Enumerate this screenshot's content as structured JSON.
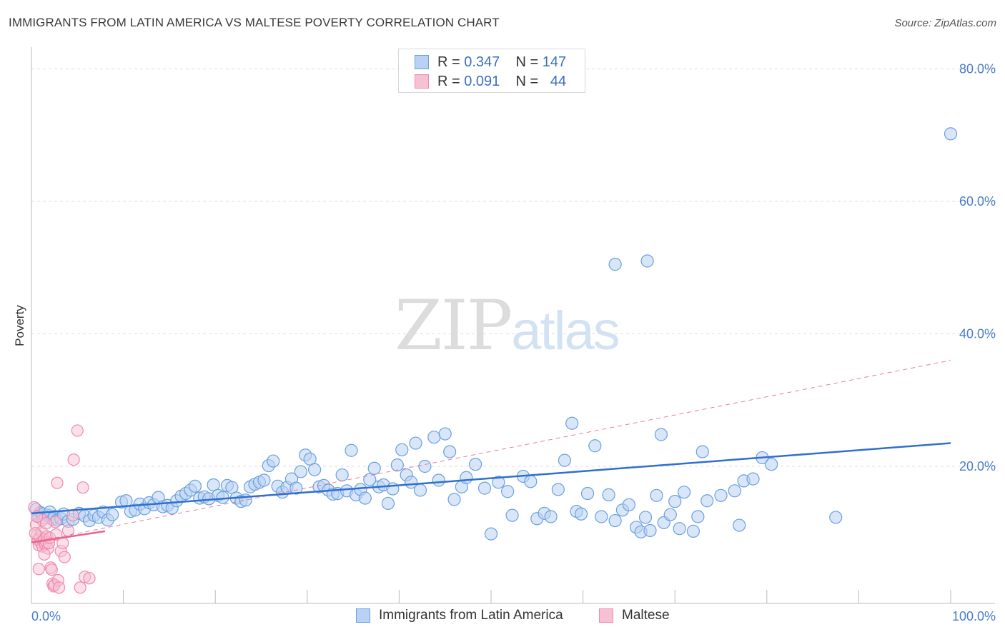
{
  "title": "IMMIGRANTS FROM LATIN AMERICA VS MALTESE POVERTY CORRELATION CHART",
  "source": "Source: ZipAtlas.com",
  "watermark": {
    "part1": "ZIP",
    "part2": "atlas"
  },
  "legend": {
    "rows": [
      {
        "r_label": "R =",
        "r_value": "0.347",
        "n_label": "N =",
        "n_value": "147"
      },
      {
        "r_label": "R =",
        "r_value": "0.091",
        "n_label": "N =",
        "n_value": "44"
      }
    ]
  },
  "colors": {
    "blue": "#6aa0e0",
    "blue_fill": "#b9d1f3",
    "blue_line": "#2f6fcf",
    "pink": "#ef8aab",
    "pink_fill": "#f6c2d3",
    "pink_line": "#e8648f",
    "grid": "#dddddd",
    "tick_label": "#4a7cc9"
  },
  "chart_data": {
    "type": "scatter",
    "title": "IMMIGRANTS FROM LATIN AMERICA VS MALTESE POVERTY CORRELATION CHART",
    "xlabel": "",
    "ylabel": "Poverty",
    "xlim": [
      0,
      100
    ],
    "ylim": [
      0,
      80
    ],
    "x_tick_labels": [
      "0.0%",
      "100.0%"
    ],
    "y_ticks": [
      20,
      40,
      60,
      80
    ],
    "y_tick_labels": [
      "20.0%",
      "40.0%",
      "60.0%",
      "80.0%"
    ],
    "grid": "horizontal dashed",
    "legend_position": "top-center",
    "series": [
      {
        "name": "Immigrants from Latin America",
        "r": 0.347,
        "n": 147,
        "trend": [
          [
            0,
            12.9
          ],
          [
            100,
            23.5
          ]
        ],
        "points": [
          [
            0.5,
            13.5
          ],
          [
            0.8,
            12.5
          ],
          [
            1.0,
            13.0
          ],
          [
            1.2,
            12.8
          ],
          [
            1.5,
            12.2
          ],
          [
            1.8,
            12.6
          ],
          [
            2.0,
            13.1
          ],
          [
            2.3,
            12.0
          ],
          [
            2.5,
            12.4
          ],
          [
            2.8,
            11.9
          ],
          [
            3.2,
            12.1
          ],
          [
            3.5,
            12.8
          ],
          [
            4.0,
            11.7
          ],
          [
            4.5,
            12.0
          ],
          [
            5.2,
            12.9
          ],
          [
            5.8,
            12.5
          ],
          [
            6.3,
            11.8
          ],
          [
            6.8,
            12.6
          ],
          [
            7.3,
            12.3
          ],
          [
            7.8,
            13.1
          ],
          [
            8.3,
            11.9
          ],
          [
            8.8,
            12.7
          ],
          [
            9.8,
            14.6
          ],
          [
            10.3,
            14.8
          ],
          [
            10.8,
            13.2
          ],
          [
            11.3,
            13.4
          ],
          [
            11.8,
            14.3
          ],
          [
            12.3,
            13.6
          ],
          [
            12.8,
            14.5
          ],
          [
            13.3,
            14.2
          ],
          [
            13.8,
            15.3
          ],
          [
            14.3,
            13.9
          ],
          [
            14.8,
            14.1
          ],
          [
            15.3,
            13.7
          ],
          [
            15.8,
            14.8
          ],
          [
            16.3,
            15.5
          ],
          [
            16.8,
            15.9
          ],
          [
            17.3,
            16.4
          ],
          [
            17.8,
            17.0
          ],
          [
            18.3,
            15.2
          ],
          [
            18.8,
            15.4
          ],
          [
            19.3,
            15.1
          ],
          [
            19.8,
            17.2
          ],
          [
            20.3,
            15.6
          ],
          [
            20.8,
            15.3
          ],
          [
            21.3,
            17.1
          ],
          [
            21.8,
            16.8
          ],
          [
            22.3,
            15.2
          ],
          [
            22.8,
            14.7
          ],
          [
            23.3,
            14.9
          ],
          [
            23.8,
            16.9
          ],
          [
            24.3,
            17.3
          ],
          [
            24.8,
            17.6
          ],
          [
            25.3,
            17.9
          ],
          [
            25.8,
            20.1
          ],
          [
            26.3,
            20.8
          ],
          [
            26.8,
            17.0
          ],
          [
            27.3,
            16.1
          ],
          [
            27.8,
            16.8
          ],
          [
            28.3,
            18.1
          ],
          [
            28.8,
            16.7
          ],
          [
            29.3,
            19.2
          ],
          [
            29.8,
            21.7
          ],
          [
            30.3,
            21.1
          ],
          [
            30.8,
            19.5
          ],
          [
            31.3,
            16.9
          ],
          [
            31.8,
            17.1
          ],
          [
            32.3,
            16.4
          ],
          [
            32.8,
            15.8
          ],
          [
            33.3,
            15.9
          ],
          [
            33.8,
            18.7
          ],
          [
            34.3,
            16.3
          ],
          [
            34.8,
            22.4
          ],
          [
            35.3,
            15.7
          ],
          [
            35.8,
            16.5
          ],
          [
            36.3,
            15.2
          ],
          [
            36.8,
            18.0
          ],
          [
            37.3,
            19.7
          ],
          [
            37.8,
            16.9
          ],
          [
            38.3,
            17.2
          ],
          [
            38.8,
            14.4
          ],
          [
            39.3,
            16.6
          ],
          [
            39.8,
            20.2
          ],
          [
            40.3,
            22.5
          ],
          [
            40.8,
            18.7
          ],
          [
            41.3,
            17.6
          ],
          [
            41.8,
            23.5
          ],
          [
            42.3,
            16.4
          ],
          [
            42.8,
            20.0
          ],
          [
            43.8,
            24.4
          ],
          [
            44.3,
            17.9
          ],
          [
            45.0,
            24.9
          ],
          [
            45.5,
            22.2
          ],
          [
            46.0,
            15.0
          ],
          [
            46.8,
            16.9
          ],
          [
            47.3,
            18.3
          ],
          [
            48.3,
            20.3
          ],
          [
            49.3,
            16.7
          ],
          [
            50.0,
            9.8
          ],
          [
            50.8,
            17.6
          ],
          [
            51.8,
            16.2
          ],
          [
            52.3,
            12.6
          ],
          [
            53.5,
            18.5
          ],
          [
            54.3,
            17.7
          ],
          [
            55.0,
            12.1
          ],
          [
            55.8,
            12.9
          ],
          [
            56.5,
            12.4
          ],
          [
            57.3,
            16.5
          ],
          [
            58.0,
            20.9
          ],
          [
            58.8,
            26.5
          ],
          [
            59.3,
            13.2
          ],
          [
            59.8,
            12.8
          ],
          [
            60.5,
            15.9
          ],
          [
            61.3,
            23.1
          ],
          [
            62.0,
            12.4
          ],
          [
            62.8,
            15.7
          ],
          [
            63.5,
            11.8
          ],
          [
            64.3,
            13.4
          ],
          [
            65.0,
            14.2
          ],
          [
            65.8,
            10.8
          ],
          [
            66.3,
            10.1
          ],
          [
            66.8,
            12.3
          ],
          [
            67.3,
            10.3
          ],
          [
            68.0,
            15.6
          ],
          [
            68.8,
            11.5
          ],
          [
            69.5,
            12.7
          ],
          [
            70.0,
            14.7
          ],
          [
            70.5,
            10.6
          ],
          [
            71.0,
            16.1
          ],
          [
            72.0,
            10.2
          ],
          [
            72.5,
            12.4
          ],
          [
            73.5,
            14.8
          ],
          [
            75.0,
            15.6
          ],
          [
            76.5,
            16.3
          ],
          [
            77.0,
            11.1
          ],
          [
            77.5,
            17.8
          ],
          [
            78.5,
            18.1
          ],
          [
            79.5,
            21.3
          ],
          [
            80.5,
            20.3
          ],
          [
            87.5,
            12.3
          ],
          [
            100.0,
            70.2
          ],
          [
            63.5,
            50.5
          ],
          [
            67.0,
            51.0
          ],
          [
            68.5,
            24.8
          ],
          [
            73.0,
            22.2
          ]
        ]
      },
      {
        "name": "Maltese",
        "r": 0.091,
        "n": 44,
        "trend_solid": [
          [
            0,
            8.5
          ],
          [
            8,
            10.2
          ]
        ],
        "trend_dashed": [
          [
            0,
            8.5
          ],
          [
            100,
            36.0
          ]
        ],
        "points": [
          [
            0.3,
            13.8
          ],
          [
            0.5,
            11.2
          ],
          [
            0.6,
            9.6
          ],
          [
            0.7,
            8.9
          ],
          [
            0.8,
            8.1
          ],
          [
            0.9,
            9.3
          ],
          [
            1.0,
            8.5
          ],
          [
            1.1,
            10.1
          ],
          [
            1.2,
            7.9
          ],
          [
            1.3,
            8.7
          ],
          [
            1.4,
            9.0
          ],
          [
            1.5,
            8.2
          ],
          [
            1.6,
            8.6
          ],
          [
            1.7,
            9.4
          ],
          [
            1.8,
            7.6
          ],
          [
            1.9,
            8.4
          ],
          [
            2.0,
            9.2
          ],
          [
            2.1,
            4.7
          ],
          [
            2.2,
            4.4
          ],
          [
            2.3,
            2.3
          ],
          [
            2.4,
            1.9
          ],
          [
            2.5,
            2.1
          ],
          [
            2.6,
            11.6
          ],
          [
            2.7,
            9.7
          ],
          [
            2.8,
            17.5
          ],
          [
            2.9,
            2.8
          ],
          [
            3.0,
            1.7
          ],
          [
            3.2,
            7.2
          ],
          [
            3.4,
            8.4
          ],
          [
            3.6,
            6.3
          ],
          [
            4.0,
            10.3
          ],
          [
            4.5,
            12.6
          ],
          [
            4.6,
            21.0
          ],
          [
            5.0,
            25.4
          ],
          [
            5.3,
            1.7
          ],
          [
            5.6,
            16.8
          ],
          [
            5.8,
            3.3
          ],
          [
            6.3,
            3.1
          ],
          [
            1.2,
            11.9
          ],
          [
            0.4,
            9.9
          ],
          [
            0.8,
            4.5
          ],
          [
            1.6,
            11.4
          ],
          [
            0.6,
            12.4
          ],
          [
            1.4,
            6.7
          ]
        ]
      }
    ]
  },
  "bottom_legend": [
    {
      "label": "Immigrants from Latin America"
    },
    {
      "label": "Maltese"
    }
  ]
}
